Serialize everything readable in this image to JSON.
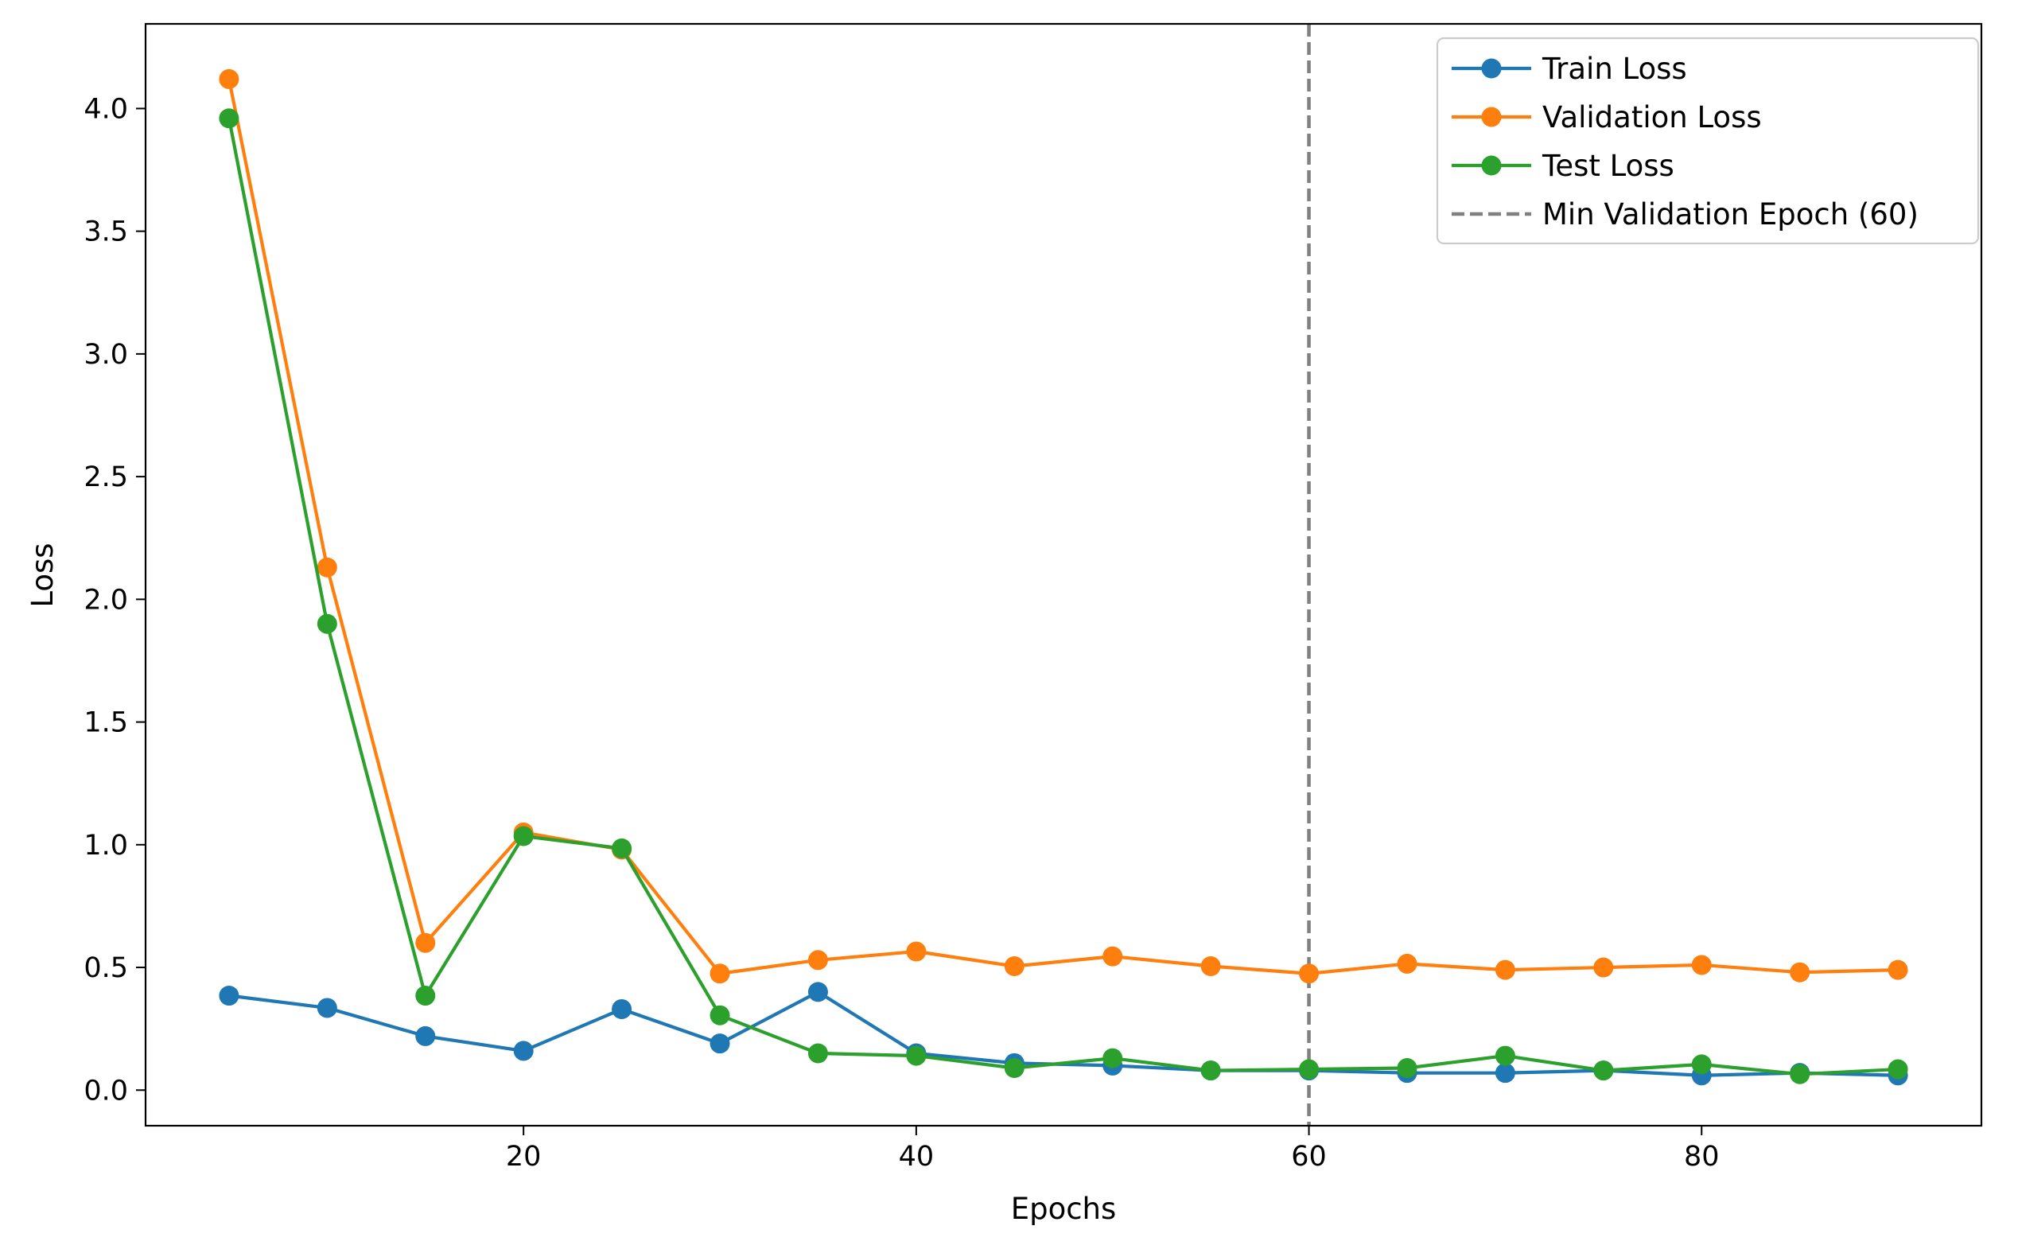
{
  "chart_data": {
    "type": "line",
    "title": "",
    "xlabel": "Epochs",
    "ylabel": "Loss",
    "xlim": [
      0.75,
      94.25
    ],
    "ylim": [
      -0.145,
      4.345
    ],
    "xticks": [
      20,
      40,
      60,
      80
    ],
    "yticks": [
      0.0,
      0.5,
      1.0,
      1.5,
      2.0,
      2.5,
      3.0,
      3.5,
      4.0
    ],
    "xtick_labels": [
      "20",
      "40",
      "60",
      "80"
    ],
    "ytick_labels": [
      "0.0",
      "0.5",
      "1.0",
      "1.5",
      "2.0",
      "2.5",
      "3.0",
      "3.5",
      "4.0"
    ],
    "grid": false,
    "legend_position": "top-right",
    "x": [
      5,
      10,
      15,
      20,
      25,
      30,
      35,
      40,
      45,
      50,
      55,
      60,
      65,
      70,
      75,
      80,
      85,
      90
    ],
    "series": [
      {
        "name": "Train Loss",
        "color": "#1f77b4",
        "marker": "circle",
        "values": [
          0.385,
          0.335,
          0.22,
          0.16,
          0.33,
          0.19,
          0.4,
          0.15,
          0.11,
          0.1,
          0.08,
          0.08,
          0.07,
          0.07,
          0.08,
          0.06,
          0.07,
          0.06
        ]
      },
      {
        "name": "Validation Loss",
        "color": "#ff7f0e",
        "marker": "circle",
        "values": [
          4.12,
          2.13,
          0.6,
          1.05,
          0.98,
          0.475,
          0.53,
          0.565,
          0.505,
          0.545,
          0.505,
          0.475,
          0.515,
          0.49,
          0.5,
          0.51,
          0.48,
          0.49
        ]
      },
      {
        "name": "Test Loss",
        "color": "#2ca02c",
        "marker": "circle",
        "values": [
          3.96,
          1.9,
          0.385,
          1.035,
          0.985,
          0.305,
          0.15,
          0.14,
          0.09,
          0.13,
          0.08,
          0.085,
          0.09,
          0.14,
          0.08,
          0.105,
          0.065,
          0.085
        ]
      }
    ],
    "vline": {
      "x": 60,
      "label": "Min Validation Epoch (60)",
      "color": "#808080",
      "style": "dashed"
    }
  }
}
